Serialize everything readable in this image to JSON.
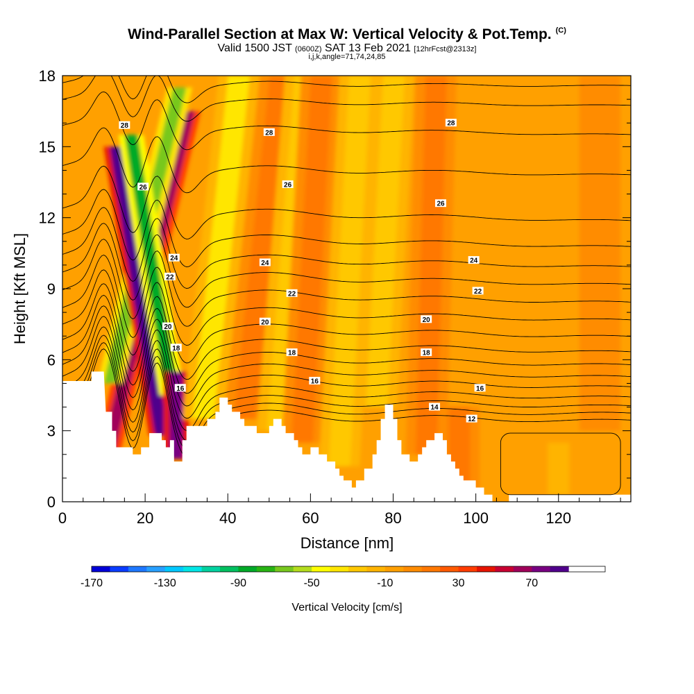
{
  "title": {
    "main": "Wind-Parallel Section at Max W: Vertical Velocity & Pot.Temp.",
    "tag": "(C)",
    "valid_prefix": "Valid 1500 JST",
    "valid_zulu": "(0600Z)",
    "valid_date": "SAT 13 Feb 2021",
    "forecast": "[12hrFcst@2313z]",
    "indices": "i,j,k,angle=71,74,24,85"
  },
  "chart_data": {
    "type": "heatmap",
    "xlabel": "Distance [nm]",
    "ylabel": "Height [Kft MSL]",
    "xlim": [
      0,
      137.5
    ],
    "ylim": [
      0,
      18
    ],
    "x_ticks": [
      0,
      20,
      40,
      60,
      80,
      100,
      120
    ],
    "y_ticks": [
      0,
      3,
      6,
      9,
      12,
      15,
      18
    ],
    "colorbar": {
      "title": "Vertical Velocity [cm/s]",
      "min": -170,
      "max": 110,
      "step": 10,
      "tick_values": [
        -170,
        -130,
        -90,
        -50,
        -10,
        30,
        70
      ],
      "colors": [
        "#0000d8",
        "#0a3cff",
        "#1e78ff",
        "#28a0ff",
        "#00c8ff",
        "#00e6e6",
        "#00d2a0",
        "#00c060",
        "#00aa28",
        "#28b414",
        "#78c81e",
        "#b4dc1e",
        "#ffff00",
        "#ffe600",
        "#ffc800",
        "#ffb400",
        "#ffa000",
        "#ff8c00",
        "#ff7800",
        "#ff5a00",
        "#ff3c00",
        "#e61400",
        "#c80032",
        "#a0005a",
        "#780082",
        "#50008c"
      ]
    },
    "background_velocity": -5,
    "velocity_features": [
      {
        "x": 9.5,
        "y_from": 1.0,
        "y_to": 16.5,
        "tilt": 0.45,
        "value": 65
      },
      {
        "x": 11.5,
        "y_from": 5.0,
        "y_to": 17.5,
        "tilt": 0.45,
        "value": -70
      },
      {
        "x": 24.0,
        "y_from": 2.8,
        "y_to": 15.0,
        "tilt": -0.3,
        "value": 80
      },
      {
        "x": 26.5,
        "y_from": 4.5,
        "y_to": 15.5,
        "tilt": -0.3,
        "value": -90
      },
      {
        "x": 27.5,
        "y_from": 1.8,
        "y_to": 5.5,
        "tilt": 0.0,
        "value": 75
      },
      {
        "x": 34.0,
        "y_from": 3.5,
        "y_to": 18.0,
        "tilt": 0.2,
        "value": -35
      },
      {
        "x": 44.0,
        "y_from": 3.5,
        "y_to": 18.0,
        "tilt": 0.2,
        "value": 15
      },
      {
        "x": 52.0,
        "y_from": 3.0,
        "y_to": 18.0,
        "tilt": 0.15,
        "value": -30
      },
      {
        "x": 58.0,
        "y_from": 2.5,
        "y_to": 18.0,
        "tilt": 0.1,
        "value": 12
      },
      {
        "x": 67.0,
        "y_from": 1.5,
        "y_to": 18.0,
        "tilt": 0.1,
        "value": -25
      },
      {
        "x": 76.0,
        "y_from": 4.0,
        "y_to": 18.0,
        "tilt": 0.1,
        "value": -22
      },
      {
        "x": 88.0,
        "y_from": 2.0,
        "y_to": 18.0,
        "tilt": 0.05,
        "value": 10
      },
      {
        "x": 96.0,
        "y_from": 0.5,
        "y_to": 4.0,
        "tilt": 0.0,
        "value": 15
      },
      {
        "x": 120.0,
        "y_from": 0.3,
        "y_to": 2.5,
        "tilt": 0.0,
        "value": -15
      },
      {
        "x": 130.0,
        "y_from": 3.0,
        "y_to": 18.0,
        "tilt": 0.0,
        "value": 8
      }
    ],
    "terrain": [
      [
        0,
        5.1
      ],
      [
        7,
        5.1
      ],
      [
        7,
        5.5
      ],
      [
        10,
        5.5
      ],
      [
        10.5,
        3.8
      ],
      [
        12,
        3.8
      ],
      [
        12,
        3.0
      ],
      [
        13,
        3.0
      ],
      [
        13,
        2.3
      ],
      [
        17,
        2.3
      ],
      [
        17,
        2.0
      ],
      [
        19,
        2.0
      ],
      [
        19,
        2.3
      ],
      [
        21,
        2.3
      ],
      [
        21,
        2.9
      ],
      [
        24,
        2.9
      ],
      [
        24,
        2.6
      ],
      [
        25,
        2.6
      ],
      [
        25,
        2.3
      ],
      [
        26,
        2.3
      ],
      [
        26,
        2.6
      ],
      [
        27,
        2.6
      ],
      [
        27,
        1.7
      ],
      [
        29,
        1.7
      ],
      [
        29,
        2.6
      ],
      [
        30,
        2.6
      ],
      [
        30,
        3.2
      ],
      [
        35,
        3.2
      ],
      [
        35,
        3.5
      ],
      [
        37,
        3.5
      ],
      [
        37,
        3.8
      ],
      [
        38,
        3.8
      ],
      [
        38,
        4.4
      ],
      [
        40,
        4.4
      ],
      [
        40,
        4.1
      ],
      [
        41,
        4.1
      ],
      [
        41,
        3.8
      ],
      [
        43,
        3.8
      ],
      [
        43,
        3.5
      ],
      [
        44,
        3.5
      ],
      [
        44,
        3.2
      ],
      [
        47,
        3.2
      ],
      [
        47,
        2.9
      ],
      [
        50,
        2.9
      ],
      [
        50,
        3.2
      ],
      [
        51,
        3.2
      ],
      [
        51,
        3.5
      ],
      [
        53,
        3.5
      ],
      [
        53,
        3.2
      ],
      [
        54,
        3.2
      ],
      [
        54,
        2.9
      ],
      [
        56,
        2.9
      ],
      [
        56,
        2.6
      ],
      [
        57,
        2.6
      ],
      [
        57,
        2.3
      ],
      [
        58,
        2.3
      ],
      [
        58,
        2.0
      ],
      [
        60,
        2.0
      ],
      [
        60,
        2.3
      ],
      [
        62,
        2.3
      ],
      [
        62,
        2.0
      ],
      [
        64,
        2.0
      ],
      [
        64,
        1.7
      ],
      [
        66,
        1.7
      ],
      [
        66,
        1.4
      ],
      [
        67,
        1.4
      ],
      [
        67,
        1.1
      ],
      [
        68,
        1.1
      ],
      [
        68,
        0.9
      ],
      [
        70,
        0.9
      ],
      [
        70,
        0.6
      ],
      [
        71,
        0.6
      ],
      [
        71,
        0.9
      ],
      [
        73,
        0.9
      ],
      [
        73,
        1.4
      ],
      [
        75,
        1.4
      ],
      [
        75,
        2.0
      ],
      [
        76,
        2.0
      ],
      [
        76,
        2.6
      ],
      [
        77,
        2.6
      ],
      [
        77,
        3.5
      ],
      [
        78,
        3.5
      ],
      [
        78,
        4.1
      ],
      [
        80,
        4.1
      ],
      [
        80,
        3.5
      ],
      [
        81,
        3.5
      ],
      [
        81,
        2.6
      ],
      [
        82,
        2.6
      ],
      [
        82,
        2.0
      ],
      [
        84,
        2.0
      ],
      [
        84,
        1.7
      ],
      [
        86,
        1.7
      ],
      [
        86,
        2.0
      ],
      [
        87,
        2.0
      ],
      [
        87,
        2.3
      ],
      [
        88,
        2.3
      ],
      [
        88,
        2.6
      ],
      [
        90,
        2.6
      ],
      [
        90,
        2.9
      ],
      [
        92,
        2.9
      ],
      [
        92,
        2.6
      ],
      [
        93,
        2.6
      ],
      [
        93,
        2.0
      ],
      [
        94,
        2.0
      ],
      [
        94,
        1.7
      ],
      [
        95,
        1.7
      ],
      [
        95,
        1.4
      ],
      [
        96,
        1.4
      ],
      [
        96,
        1.1
      ],
      [
        97,
        1.1
      ],
      [
        97,
        0.9
      ],
      [
        100,
        0.9
      ],
      [
        100,
        0.6
      ],
      [
        102,
        0.6
      ],
      [
        102,
        0.3
      ],
      [
        104,
        0.3
      ],
      [
        104,
        0.0
      ],
      [
        105,
        0.0
      ],
      [
        105,
        0.0
      ],
      [
        108,
        0.0
      ],
      [
        108,
        0.3
      ],
      [
        137.5,
        0.3
      ]
    ],
    "isentropes": [
      {
        "value": 12,
        "base": 3.75,
        "slope": -0.0025
      },
      {
        "value": 13,
        "base": 4.05,
        "slope": -0.0025
      },
      {
        "value": 14,
        "base": 4.4,
        "slope": -0.0028
      },
      {
        "value": 15,
        "base": 4.8,
        "slope": -0.003
      },
      {
        "value": 16,
        "base": 5.3,
        "slope": -0.0035
      },
      {
        "value": 17,
        "base": 5.8,
        "slope": -0.004
      },
      {
        "value": 18,
        "base": 6.3,
        "slope": -0.004
      },
      {
        "value": 19,
        "base": 6.85,
        "slope": -0.004
      },
      {
        "value": 20,
        "base": 7.5,
        "slope": -0.004
      },
      {
        "value": 21,
        "base": 8.2,
        "slope": -0.004
      },
      {
        "value": 22,
        "base": 8.95,
        "slope": -0.004
      },
      {
        "value": 23,
        "base": 9.7,
        "slope": -0.004
      },
      {
        "value": 24,
        "base": 10.45,
        "slope": -0.004
      },
      {
        "value": 25,
        "base": 11.3,
        "slope": -0.004
      },
      {
        "value": 26,
        "base": 12.4,
        "slope": -0.004
      },
      {
        "value": 27,
        "base": 14.2,
        "slope": -0.003
      },
      {
        "value": 28,
        "base": 15.9,
        "slope": -0.003
      },
      {
        "value": 29,
        "base": 17.0,
        "slope": -0.002
      },
      {
        "value": 30,
        "base": 17.7,
        "slope": -0.001
      }
    ],
    "contour_labels": [
      {
        "text": "28",
        "x": 15,
        "y": 15.9
      },
      {
        "text": "28",
        "x": 50,
        "y": 15.6
      },
      {
        "text": "28",
        "x": 94,
        "y": 16.0
      },
      {
        "text": "26",
        "x": 19.5,
        "y": 13.3
      },
      {
        "text": "26",
        "x": 54.5,
        "y": 13.4
      },
      {
        "text": "26",
        "x": 91.5,
        "y": 12.6
      },
      {
        "text": "24",
        "x": 27,
        "y": 10.3
      },
      {
        "text": "24",
        "x": 49,
        "y": 10.1
      },
      {
        "text": "24",
        "x": 99.5,
        "y": 10.2
      },
      {
        "text": "22",
        "x": 26,
        "y": 9.5
      },
      {
        "text": "22",
        "x": 55.5,
        "y": 8.8
      },
      {
        "text": "22",
        "x": 100.5,
        "y": 8.9
      },
      {
        "text": "20",
        "x": 25.5,
        "y": 7.4
      },
      {
        "text": "20",
        "x": 49,
        "y": 7.6
      },
      {
        "text": "20",
        "x": 88,
        "y": 7.7
      },
      {
        "text": "18",
        "x": 27.5,
        "y": 6.5
      },
      {
        "text": "18",
        "x": 55.5,
        "y": 6.3
      },
      {
        "text": "18",
        "x": 88,
        "y": 6.3
      },
      {
        "text": "16",
        "x": 28.5,
        "y": 4.8
      },
      {
        "text": "16",
        "x": 61,
        "y": 5.1
      },
      {
        "text": "16",
        "x": 101,
        "y": 4.8
      },
      {
        "text": "14",
        "x": 90,
        "y": 4.0
      },
      {
        "text": "12",
        "x": 99,
        "y": 3.5
      }
    ]
  }
}
